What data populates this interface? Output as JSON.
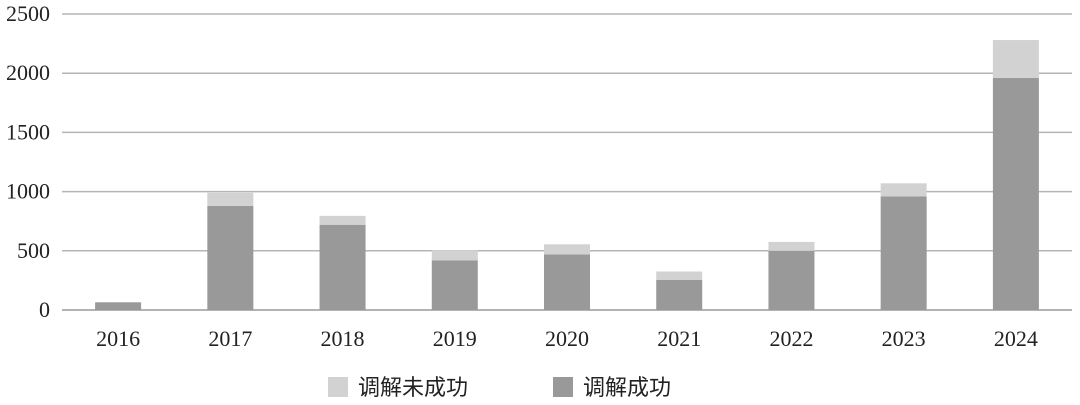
{
  "chart_data": {
    "type": "bar",
    "stacked": true,
    "categories": [
      "2016",
      "2017",
      "2018",
      "2019",
      "2020",
      "2021",
      "2022",
      "2023",
      "2024"
    ],
    "series": [
      {
        "name": "调解成功",
        "values": [
          65,
          880,
          720,
          420,
          470,
          255,
          500,
          960,
          1960
        ],
        "color": "#999999"
      },
      {
        "name": "调解未成功",
        "values": [
          0,
          110,
          75,
          85,
          85,
          70,
          75,
          110,
          320
        ],
        "color": "#d2d2d2"
      }
    ],
    "ylim": [
      0,
      2500
    ],
    "yticks": [
      0,
      500,
      1000,
      1500,
      2000,
      2500
    ],
    "grid": true,
    "legend": {
      "position": "bottom",
      "items": [
        {
          "label": "调解未成功",
          "color": "#d2d2d2"
        },
        {
          "label": "调解成功",
          "color": "#999999"
        }
      ]
    },
    "title": "",
    "xlabel": "",
    "ylabel": ""
  }
}
